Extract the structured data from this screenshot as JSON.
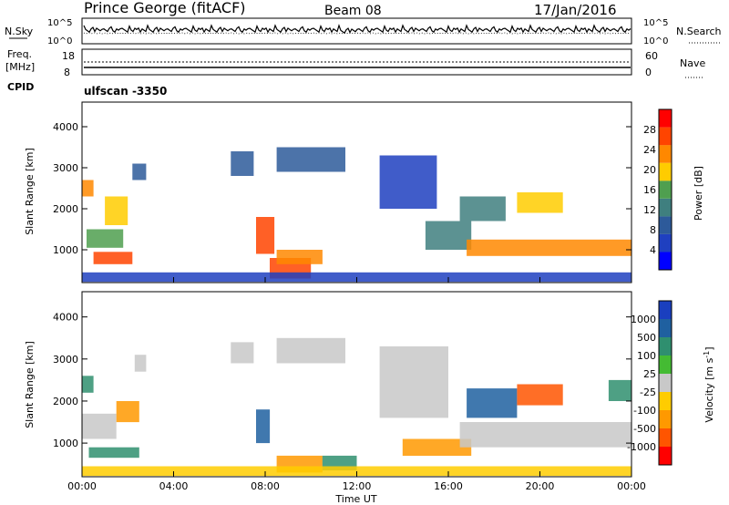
{
  "header": {
    "title": "Prince George (fitACF)",
    "beam": "Beam 08",
    "date": "17/Jan/2016"
  },
  "sky_panel": {
    "left_label": "N.Sky",
    "right_label": "N.Search",
    "left_ticks": [
      "10^5",
      "10^0"
    ],
    "right_ticks": [
      "10^5",
      "10^0"
    ]
  },
  "freq_panel": {
    "left_label_line1": "Freq.",
    "left_label_line2": "[MHz]",
    "right_label": "Nave",
    "left_ticks": [
      "18",
      "8"
    ],
    "right_ticks": [
      "60",
      "0"
    ]
  },
  "cpid": {
    "label": "CPID",
    "value": "ulfscan -3350"
  },
  "x_axis": {
    "label": "Time UT",
    "ticks": [
      "00:00",
      "04:00",
      "08:00",
      "12:00",
      "16:00",
      "20:00",
      "00:00"
    ]
  },
  "colors": {
    "power": [
      "#0000ff",
      "#1f40c0",
      "#2d5a9a",
      "#3f7f7f",
      "#4f9f4f",
      "#ffcc00",
      "#ff8800",
      "#ff4400",
      "#ff0000"
    ],
    "velocity": [
      "#1a3fbf",
      "#1f60a0",
      "#2f8f6f",
      "#44bb33",
      "#c8c8c8",
      "#ffcc00",
      "#ff9900",
      "#ff5500",
      "#ff0000"
    ]
  },
  "chart_data": [
    {
      "type": "heatmap",
      "title": "",
      "ylabel": "Slant Range [km]",
      "xlabel": "",
      "ylim": [
        200,
        4600
      ],
      "yticks": [
        1000,
        2000,
        3000,
        4000
      ],
      "colorbar_label": "Power [dB]",
      "colorbar_ticks": [
        4,
        8,
        12,
        16,
        20,
        24,
        28
      ],
      "colorbar_range": [
        0,
        32
      ],
      "x_range_hours": [
        0,
        24
      ],
      "grid": false,
      "blobs": [
        {
          "t0": 0.0,
          "t1": 0.5,
          "r0": 2300,
          "r1": 2700,
          "v": 22
        },
        {
          "t0": 0.2,
          "t1": 1.8,
          "r0": 1050,
          "r1": 1500,
          "v": 16
        },
        {
          "t0": 0.5,
          "t1": 2.2,
          "r0": 650,
          "r1": 950,
          "v": 28
        },
        {
          "t0": 1.0,
          "t1": 2.0,
          "r0": 1600,
          "r1": 2300,
          "v": 18
        },
        {
          "t0": 2.2,
          "t1": 2.8,
          "r0": 2700,
          "r1": 3100,
          "v": 10
        },
        {
          "t0": 6.5,
          "t1": 7.5,
          "r0": 2800,
          "r1": 3400,
          "v": 9
        },
        {
          "t0": 7.6,
          "t1": 8.4,
          "r0": 900,
          "r1": 1800,
          "v": 26
        },
        {
          "t0": 8.2,
          "t1": 10.0,
          "r0": 300,
          "r1": 800,
          "v": 28
        },
        {
          "t0": 8.5,
          "t1": 10.5,
          "r0": 650,
          "r1": 1000,
          "v": 24
        },
        {
          "t0": 8.5,
          "t1": 11.5,
          "r0": 2900,
          "r1": 3500,
          "v": 8
        },
        {
          "t0": 13.0,
          "t1": 15.5,
          "r0": 2000,
          "r1": 3300,
          "v": 7
        },
        {
          "t0": 15.0,
          "t1": 17.0,
          "r0": 1000,
          "r1": 1700,
          "v": 14
        },
        {
          "t0": 16.5,
          "t1": 18.5,
          "r0": 1700,
          "r1": 2300,
          "v": 12
        },
        {
          "t0": 16.8,
          "t1": 24.0,
          "r0": 850,
          "r1": 1250,
          "v": 22
        },
        {
          "t0": 19.0,
          "t1": 21.0,
          "r0": 1900,
          "r1": 2400,
          "v": 20
        },
        {
          "t0": 0.0,
          "t1": 24.0,
          "r0": 220,
          "r1": 450,
          "v": 6
        }
      ]
    },
    {
      "type": "heatmap",
      "title": "",
      "ylabel": "Slant Range [km]",
      "xlabel": "Time UT",
      "ylim": [
        200,
        4600
      ],
      "yticks": [
        1000,
        2000,
        3000,
        4000
      ],
      "colorbar_label": "Velocity [m s^-1]",
      "colorbar_ticks": [
        1000,
        500,
        100,
        25,
        -25,
        -100,
        -500,
        -1000
      ],
      "x_range_hours": [
        0,
        24
      ],
      "grid": false,
      "blobs": [
        {
          "t0": 0.0,
          "t1": 1.5,
          "r0": 1100,
          "r1": 1700,
          "v": 0
        },
        {
          "t0": 0.0,
          "t1": 0.5,
          "r0": 2200,
          "r1": 2600,
          "v": 200
        },
        {
          "t0": 1.5,
          "t1": 2.5,
          "r0": 1500,
          "r1": 2000,
          "v": -200
        },
        {
          "t0": 0.3,
          "t1": 2.5,
          "r0": 650,
          "r1": 900,
          "v": 150
        },
        {
          "t0": 2.3,
          "t1": 2.8,
          "r0": 2700,
          "r1": 3100,
          "v": 0
        },
        {
          "t0": 6.5,
          "t1": 7.5,
          "r0": 2900,
          "r1": 3400,
          "v": 0
        },
        {
          "t0": 7.6,
          "t1": 8.2,
          "r0": 1000,
          "r1": 1800,
          "v": 700
        },
        {
          "t0": 8.5,
          "t1": 10.5,
          "r0": 300,
          "r1": 700,
          "v": -200
        },
        {
          "t0": 10.5,
          "t1": 12.0,
          "r0": 350,
          "r1": 700,
          "v": 150
        },
        {
          "t0": 8.5,
          "t1": 11.5,
          "r0": 2900,
          "r1": 3500,
          "v": 0
        },
        {
          "t0": 13.0,
          "t1": 16.0,
          "r0": 1600,
          "r1": 3300,
          "v": 0
        },
        {
          "t0": 14.0,
          "t1": 17.0,
          "r0": 700,
          "r1": 1100,
          "v": -200
        },
        {
          "t0": 16.5,
          "t1": 24.0,
          "r0": 900,
          "r1": 1500,
          "v": 0
        },
        {
          "t0": 16.8,
          "t1": 19.0,
          "r0": 1600,
          "r1": 2300,
          "v": 600
        },
        {
          "t0": 19.0,
          "t1": 21.0,
          "r0": 1900,
          "r1": 2400,
          "v": -800
        },
        {
          "t0": 23.0,
          "t1": 24.0,
          "r0": 2000,
          "r1": 2500,
          "v": 150
        },
        {
          "t0": 0.0,
          "t1": 24.0,
          "r0": 220,
          "r1": 450,
          "v": -40
        }
      ]
    }
  ]
}
